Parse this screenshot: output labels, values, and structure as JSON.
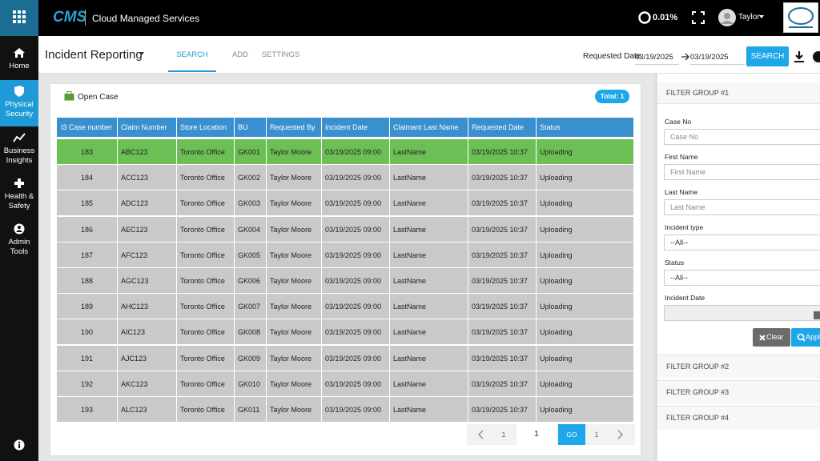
{
  "topbar": {
    "logo": "CMS",
    "app_name": "Cloud Managed Services",
    "stat": "0.01%",
    "user": "Taylor"
  },
  "sidebar": {
    "items": [
      "Home",
      "Physical Security",
      "Business Insights",
      "Health & Safety",
      "Admin Tools"
    ]
  },
  "header": {
    "title": "Incident Reporting",
    "tabs": [
      "SEARCH",
      "ADD",
      "SETTINGS"
    ],
    "date_label": "Requested Date",
    "date_from": "03/19/2025",
    "date_to": "03/19/2025",
    "search_button": "SEARCH"
  },
  "card": {
    "title": "Open Case",
    "total": "Total: 1"
  },
  "table": {
    "columns": [
      "I3 Case number",
      "Claim Number",
      "Store Location",
      "BU",
      "Requested By",
      "Incident Date",
      "Claimant Last Name",
      "Requested Date",
      "Status"
    ],
    "rows": [
      [
        "183",
        "ABC123",
        "Toronto Office",
        "GK001",
        "Taylor Moore",
        "03/19/2025 09:00",
        "LastName",
        "03/19/2025 10:37",
        "Uploading"
      ],
      [
        "184",
        "ACC123",
        "Toronto Office",
        "GK002",
        "Taylor Moore",
        "03/19/2025 09:00",
        "LastName",
        "03/19/2025 10:37",
        "Uploading"
      ],
      [
        "185",
        "ADC123",
        "Toronto Office",
        "GK003",
        "Taylor Moore",
        "03/19/2025 09:00",
        "LastName",
        "03/19/2025 10:37",
        "Uploading"
      ],
      [
        "186",
        "AEC123",
        "Toronto Office",
        "GK004",
        "Taylor Moore",
        "03/19/2025 09:00",
        "LastName",
        "03/19/2025 10:37",
        "Uploading"
      ],
      [
        "187",
        "AFC123",
        "Toronto Office",
        "GK005",
        "Taylor Moore",
        "03/19/2025 09:00",
        "LastName",
        "03/19/2025 10:37",
        "Uploading"
      ],
      [
        "188",
        "AGC123",
        "Toronto Office",
        "GK006",
        "Taylor Moore",
        "03/19/2025 09:00",
        "LastName",
        "03/19/2025 10:37",
        "Uploading"
      ],
      [
        "189",
        "AHC123",
        "Toronto Office",
        "GK007",
        "Taylor Moore",
        "03/19/2025 09:00",
        "LastName",
        "03/19/2025 10:37",
        "Uploading"
      ],
      [
        "190",
        "AIC123",
        "Toronto Office",
        "GK008",
        "Taylor Moore",
        "03/19/2025 09:00",
        "LastName",
        "03/19/2025 10:37",
        "Uploading"
      ],
      [
        "191",
        "AJC123",
        "Toronto Office",
        "GK009",
        "Taylor Moore",
        "03/19/2025 09:00",
        "LastName",
        "03/19/2025 10:37",
        "Uploading"
      ],
      [
        "192",
        "AKC123",
        "Toronto Office",
        "GK010",
        "Taylor Moore",
        "03/19/2025 09:00",
        "LastName",
        "03/19/2025 10:37",
        "Uploading"
      ],
      [
        "193",
        "ALC123",
        "Toronto Office",
        "GK011",
        "Taylor Moore",
        "03/19/2025 09:00",
        "LastName",
        "03/19/2025 10:37",
        "Uploading"
      ]
    ]
  },
  "pagination": {
    "first": "1",
    "current": "1",
    "go": "GO",
    "last": "1"
  },
  "filters": {
    "group1": "FILTER GROUP #1",
    "fields": [
      {
        "label": "Case No",
        "value": "Case No"
      },
      {
        "label": "First Name",
        "value": "First Name"
      },
      {
        "label": "Last Name",
        "value": "Last Name"
      },
      {
        "label": "Incident type",
        "value": "--All--"
      },
      {
        "label": "Status",
        "value": "--All--"
      },
      {
        "label": "Incident Date"
      }
    ],
    "clear": "Clear",
    "apply": "Apply",
    "groups": [
      "FILTER GROUP #2",
      "FILTER GROUP #3",
      "FILTER GROUP #4"
    ]
  }
}
